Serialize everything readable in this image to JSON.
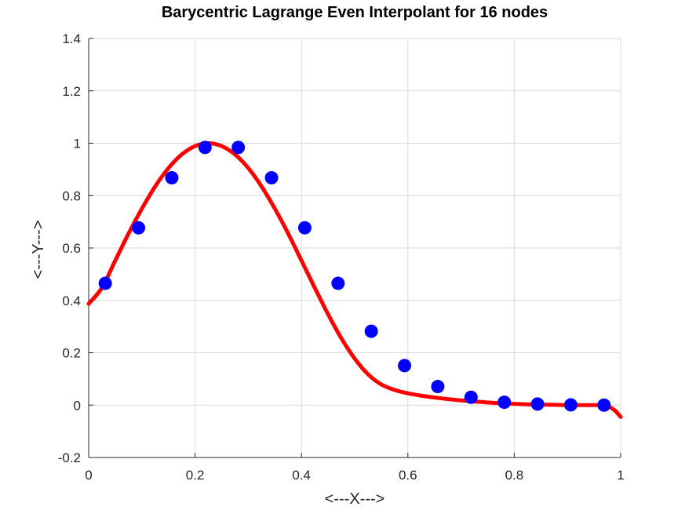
{
  "chart_data": {
    "type": "line",
    "title": "Barycentric Lagrange Even Interpolant for 16 nodes",
    "xlabel": "<---X--->",
    "ylabel": "<---Y--->",
    "xlim": [
      0,
      1
    ],
    "ylim": [
      -0.2,
      1.4
    ],
    "xticks": [
      0,
      0.2,
      0.4,
      0.6,
      0.8,
      1
    ],
    "xtick_labels": [
      "0",
      "0.2",
      "0.4",
      "0.6",
      "0.8",
      "1"
    ],
    "yticks": [
      -0.2,
      0,
      0.2,
      0.4,
      0.6,
      0.8,
      1,
      1.2,
      1.4
    ],
    "ytick_labels": [
      "-0.2",
      "0",
      "0.2",
      "0.4",
      "0.6",
      "0.8",
      "1",
      "1.2",
      "1.4"
    ],
    "grid": true,
    "series": [
      {
        "kind": "scatter",
        "color": "#0000ff",
        "x": [
          0.03125,
          0.09375,
          0.15625,
          0.21875,
          0.28125,
          0.34375,
          0.40625,
          0.46875,
          0.53125,
          0.59375,
          0.65625,
          0.71875,
          0.78125,
          0.84375,
          0.90625,
          0.96875
        ],
        "y": [
          0.465,
          0.677,
          0.868,
          0.984,
          0.984,
          0.868,
          0.677,
          0.465,
          0.282,
          0.151,
          0.071,
          0.03,
          0.011,
          0.004,
          0.001,
          0.0
        ]
      },
      {
        "kind": "line",
        "color": "#ff0000",
        "x": [
          0,
          0.025,
          0.05,
          0.075,
          0.1,
          0.125,
          0.15,
          0.175,
          0.2,
          0.225,
          0.25,
          0.275,
          0.3,
          0.325,
          0.35,
          0.375,
          0.4,
          0.425,
          0.45,
          0.475,
          0.5,
          0.525,
          0.55,
          0.575,
          0.6,
          0.625,
          0.65,
          0.675,
          0.7,
          0.725,
          0.75,
          0.775,
          0.8,
          0.825,
          0.85,
          0.875,
          0.9,
          0.925,
          0.95,
          0.97,
          0.98,
          0.99,
          1
        ],
        "y": [
          0.387,
          0.448,
          0.552,
          0.655,
          0.75,
          0.835,
          0.905,
          0.957,
          0.989,
          1.0,
          0.989,
          0.957,
          0.905,
          0.835,
          0.75,
          0.655,
          0.552,
          0.448,
          0.347,
          0.255,
          0.178,
          0.118,
          0.079,
          0.058,
          0.045,
          0.036,
          0.029,
          0.023,
          0.018,
          0.014,
          0.01,
          0.007,
          0.005,
          0.003,
          0.002,
          0.001,
          0.0,
          0.0,
          0.0,
          0.0,
          -0.008,
          -0.022,
          -0.045
        ]
      }
    ]
  }
}
